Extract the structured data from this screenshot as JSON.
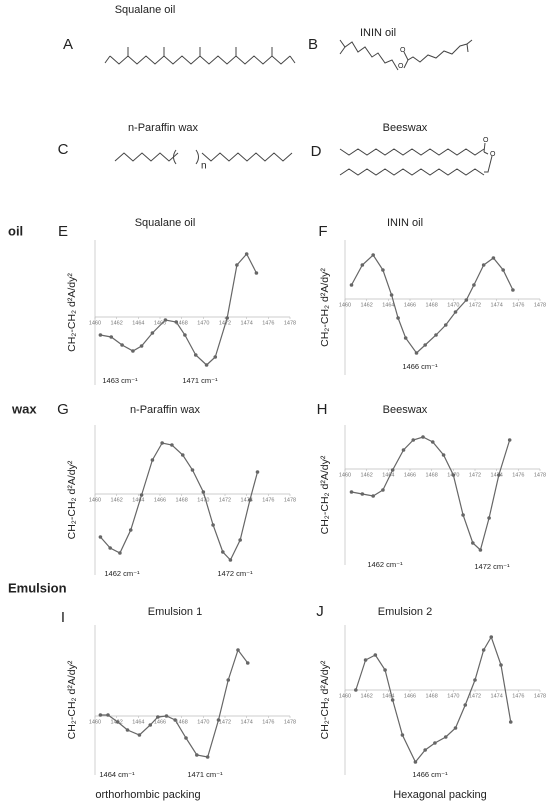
{
  "structures": [
    {
      "letter": "A",
      "name": "Squalane oil"
    },
    {
      "letter": "B",
      "name": "ININ  oil"
    },
    {
      "letter": "C",
      "name": "n-Paraffin wax",
      "repeat_label": "n"
    },
    {
      "letter": "D",
      "name": "Beeswax"
    }
  ],
  "row_labels": [
    "oil",
    "wax",
    "Emulsion"
  ],
  "chart_data": [
    {
      "type": "line",
      "panel": "E",
      "title": "Squalane oil",
      "y_label": "CH₂-CH₂ d²A/dy²",
      "color": "#666666",
      "xlim": [
        1460,
        1478
      ],
      "xticks": [
        1460,
        1462,
        1464,
        1466,
        1468,
        1470,
        1472,
        1474,
        1476,
        1478
      ],
      "ylim": [
        -6.8,
        7.7
      ],
      "x": [
        1460.5,
        1461.5,
        1462.5,
        1463.5,
        1464.3,
        1465.3,
        1466.5,
        1467.5,
        1468.3,
        1469.3,
        1470.3,
        1471.1,
        1472.2,
        1473.1,
        1474,
        1474.9
      ],
      "values": [
        -1.8,
        -2,
        -2.8,
        -3.4,
        -2.9,
        -1.6,
        -0.3,
        -0.5,
        -1.8,
        -3.8,
        -4.8,
        -4,
        -0.1,
        5.2,
        6.3,
        4.4
      ],
      "annotations": [
        "1463 cm⁻¹",
        "1471 cm⁻¹"
      ]
    },
    {
      "type": "line",
      "panel": "F",
      "title": "ININ oil",
      "y_label": "CH₂-CH₂ d²A/dy²",
      "color": "#666666",
      "xlim": [
        1460,
        1478
      ],
      "xticks": [
        1460,
        1462,
        1464,
        1466,
        1468,
        1470,
        1472,
        1474,
        1476,
        1478
      ],
      "ylim": [
        -7.6,
        5.9
      ],
      "x": [
        1460.6,
        1461.6,
        1462.6,
        1463.5,
        1464.3,
        1464.9,
        1465.6,
        1466.6,
        1467.4,
        1468.4,
        1469.3,
        1470.2,
        1471.2,
        1471.9,
        1472.8,
        1473.7,
        1474.6,
        1475.5
      ],
      "values": [
        1.4,
        3.4,
        4.4,
        2.9,
        0.4,
        -1.9,
        -3.9,
        -5.4,
        -4.6,
        -3.6,
        -2.6,
        -1.3,
        -0.1,
        1.4,
        3.4,
        4.1,
        2.9,
        0.9
      ],
      "annotations": [
        "1466 cm⁻¹"
      ]
    },
    {
      "type": "line",
      "panel": "G",
      "title": "n-Paraffin wax",
      "y_label": "CH₂-CH₂ d²A/dy²",
      "color": "#666666",
      "xlim": [
        1460,
        1478
      ],
      "xticks": [
        1460,
        1462,
        1464,
        1466,
        1468,
        1470,
        1472,
        1474,
        1476,
        1478
      ],
      "ylim": [
        -8.1,
        6.9
      ],
      "x": [
        1460.5,
        1461.4,
        1462.3,
        1463.3,
        1464.3,
        1465.3,
        1466.2,
        1467.1,
        1468.1,
        1469,
        1470,
        1470.9,
        1471.8,
        1472.5,
        1473.4,
        1474.3,
        1475
      ],
      "values": [
        -4.3,
        -5.4,
        -5.9,
        -3.6,
        -0.1,
        3.4,
        5.1,
        4.9,
        3.9,
        2.4,
        0.2,
        -3.1,
        -5.8,
        -6.6,
        -4.6,
        -0.6,
        2.2
      ],
      "annotations": [
        "1462 cm⁻¹",
        "1472 cm⁻¹"
      ]
    },
    {
      "type": "line",
      "panel": "H",
      "title": "Beeswax",
      "y_label": "CH₂-CH₂ d²A/dy²",
      "color": "#666666",
      "xlim": [
        1460,
        1478
      ],
      "xticks": [
        1460,
        1462,
        1464,
        1466,
        1468,
        1470,
        1472,
        1474,
        1476,
        1478
      ],
      "ylim": [
        -9.6,
        4.4
      ],
      "x": [
        1460.6,
        1461.6,
        1462.6,
        1463.5,
        1464.4,
        1465.4,
        1466.3,
        1467.2,
        1468.1,
        1469.1,
        1470,
        1470.9,
        1471.8,
        1472.5,
        1473.3,
        1474.2,
        1475.2
      ],
      "values": [
        -2.3,
        -2.5,
        -2.7,
        -2.1,
        -0.1,
        1.9,
        2.9,
        3.2,
        2.7,
        1.4,
        -0.6,
        -4.6,
        -7.4,
        -8.1,
        -4.9,
        -0.6,
        2.9
      ],
      "annotations": [
        "1462 cm⁻¹",
        "1472 cm⁻¹"
      ]
    },
    {
      "type": "line",
      "panel": "I",
      "title": "Emulsion 1",
      "y_label": "CH₂-CH₂ d²A/dy²",
      "color": "#666666",
      "xlim": [
        1460,
        1478
      ],
      "xticks": [
        1460,
        1462,
        1464,
        1466,
        1468,
        1470,
        1472,
        1474,
        1476,
        1478
      ],
      "ylim": [
        -5.9,
        9.1
      ],
      "x": [
        1460.5,
        1461.2,
        1462.1,
        1463,
        1464.1,
        1465.1,
        1465.8,
        1466.6,
        1467.4,
        1468.4,
        1469.4,
        1470.4,
        1471.4,
        1472.3,
        1473.2,
        1474.1
      ],
      "values": [
        0.1,
        0.1,
        -0.6,
        -1.4,
        -1.9,
        -0.9,
        -0.1,
        0,
        -0.4,
        -2.2,
        -3.9,
        -4.1,
        -0.4,
        3.6,
        6.6,
        5.3
      ],
      "annotations": [
        "1464 cm⁻¹",
        "1471 cm⁻¹"
      ],
      "caption": "orthorhombic packing"
    },
    {
      "type": "line",
      "panel": "J",
      "title": "Emulsion 2",
      "y_label": "CH₂-CH₂ d²A/dy²",
      "color": "#666666",
      "xlim": [
        1460,
        1478
      ],
      "xticks": [
        1460,
        1462,
        1464,
        1466,
        1468,
        1470,
        1472,
        1474,
        1476,
        1478
      ],
      "ylim": [
        -8.5,
        6.5
      ],
      "x": [
        1461,
        1461.9,
        1462.8,
        1463.7,
        1464.4,
        1465.3,
        1466.5,
        1467.4,
        1468.3,
        1469.3,
        1470.2,
        1471.1,
        1472,
        1472.8,
        1473.5,
        1474.4,
        1475.3
      ],
      "values": [
        0,
        3,
        3.5,
        2,
        -1,
        -4.5,
        -7.2,
        -6,
        -5.3,
        -4.7,
        -3.8,
        -1.5,
        1,
        4,
        5.3,
        2.5,
        -3.2
      ],
      "annotations": [
        "1466 cm⁻¹"
      ],
      "caption": "Hexagonal packing"
    }
  ]
}
